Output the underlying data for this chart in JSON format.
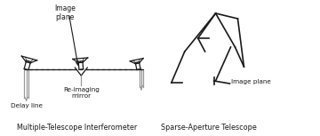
{
  "line_color": "#1a1a1a",
  "gray_color": "#999999",
  "title_left": "Multiple-Telescope Interferometer",
  "title_right": "Sparse-Aperture Telescope",
  "label_image_plane": "Image\nplane",
  "label_delay_line": "Delay line",
  "label_reimaging": "Re-imaging\nmirror",
  "label_image_plane_right": "Image plane",
  "fig_width": 3.6,
  "fig_height": 1.53,
  "dpi": 100
}
